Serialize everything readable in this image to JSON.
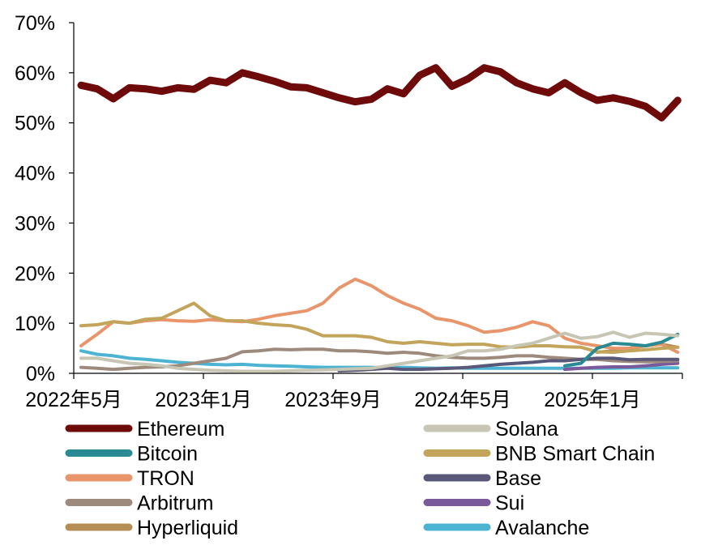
{
  "chart_data": {
    "type": "line",
    "title": "",
    "xlabel": "",
    "ylabel": "",
    "ylim": [
      0,
      70
    ],
    "y_ticks": [
      "0%",
      "10%",
      "20%",
      "30%",
      "40%",
      "50%",
      "60%",
      "70%"
    ],
    "x_tick_labels": [
      "2022年5月",
      "2023年1月",
      "2023年9月",
      "2024年5月",
      "2025年1月"
    ],
    "x_count": 38,
    "grid": false,
    "legend_position": "bottom",
    "series": [
      {
        "name": "Ethereum",
        "color": "#6e0a0a",
        "values": [
          57.5,
          56.8,
          54.8,
          57.0,
          56.8,
          56.3,
          57.0,
          56.7,
          58.5,
          58.0,
          60.0,
          59.2,
          58.3,
          57.2,
          57.0,
          56.0,
          55.0,
          54.2,
          54.7,
          56.8,
          55.8,
          59.5,
          61.0,
          57.3,
          58.8,
          61.0,
          60.2,
          58.0,
          56.8,
          56.0,
          58.0,
          56.0,
          54.5,
          55.0,
          54.3,
          53.3,
          51.0,
          54.5
        ]
      },
      {
        "name": "Solana",
        "color": "#c7c5b3",
        "values": [
          3.0,
          3.0,
          2.5,
          2.0,
          1.8,
          1.5,
          1.0,
          0.8,
          0.6,
          0.5,
          0.4,
          0.4,
          0.4,
          0.5,
          0.6,
          0.7,
          0.8,
          0.9,
          1.0,
          1.5,
          2.0,
          2.5,
          3.0,
          3.5,
          4.5,
          4.5,
          4.8,
          5.5,
          6.0,
          7.0,
          8.0,
          7.0,
          7.3,
          8.2,
          7.2,
          8.0,
          7.8,
          7.5
        ]
      },
      {
        "name": "Bitcoin",
        "color": "#2a8a94",
        "values": [
          null,
          null,
          null,
          null,
          null,
          null,
          null,
          null,
          null,
          null,
          null,
          null,
          null,
          null,
          null,
          null,
          null,
          null,
          null,
          null,
          null,
          null,
          null,
          null,
          null,
          null,
          null,
          null,
          null,
          null,
          1.5,
          2.0,
          5.0,
          6.0,
          5.8,
          5.5,
          6.2,
          7.8
        ]
      },
      {
        "name": "BNB Smart Chain",
        "color": "#c2a45a",
        "values": [
          9.5,
          9.7,
          10.3,
          10.0,
          10.8,
          11.0,
          12.5,
          14.0,
          11.5,
          10.5,
          10.5,
          10.0,
          9.7,
          9.5,
          8.8,
          7.5,
          7.5,
          7.5,
          7.2,
          6.3,
          6.0,
          6.3,
          6.0,
          5.7,
          5.8,
          5.8,
          5.3,
          5.2,
          5.5,
          5.5,
          5.3,
          5.2,
          4.3,
          4.2,
          4.5,
          4.7,
          5.0,
          5.2
        ]
      },
      {
        "name": "TRON",
        "color": "#e8956b",
        "values": [
          5.5,
          7.8,
          10.3,
          10.0,
          10.5,
          10.7,
          10.5,
          10.4,
          10.7,
          10.5,
          10.3,
          10.8,
          11.5,
          12.0,
          12.5,
          14.0,
          17.0,
          18.8,
          17.5,
          15.5,
          14.0,
          12.8,
          11.0,
          10.5,
          9.5,
          8.2,
          8.5,
          9.2,
          10.3,
          9.5,
          7.0,
          6.0,
          5.5,
          5.0,
          5.0,
          5.5,
          5.8,
          4.2
        ]
      },
      {
        "name": "Base",
        "color": "#5a5878",
        "values": [
          null,
          null,
          null,
          null,
          null,
          null,
          null,
          null,
          null,
          null,
          null,
          null,
          null,
          null,
          null,
          null,
          0.5,
          0.6,
          0.8,
          1.0,
          0.8,
          0.8,
          0.9,
          1.0,
          1.2,
          1.5,
          1.8,
          2.0,
          2.2,
          2.5,
          2.5,
          2.8,
          3.0,
          3.0,
          2.7,
          2.8,
          2.8,
          2.8
        ]
      },
      {
        "name": "Arbitrum",
        "color": "#9e8a7d",
        "values": [
          1.2,
          1.0,
          0.8,
          1.0,
          1.2,
          1.3,
          1.5,
          2.0,
          2.5,
          3.0,
          4.3,
          4.5,
          4.8,
          4.7,
          4.8,
          4.8,
          4.5,
          4.5,
          4.3,
          4.0,
          4.2,
          4.0,
          3.5,
          3.2,
          3.0,
          3.0,
          3.2,
          3.5,
          3.5,
          3.2,
          3.0,
          2.8,
          2.8,
          2.5,
          2.4,
          2.3,
          2.4,
          2.5
        ]
      },
      {
        "name": "Sui",
        "color": "#7b5a9b",
        "values": [
          null,
          null,
          null,
          null,
          null,
          null,
          null,
          null,
          null,
          null,
          null,
          null,
          null,
          null,
          null,
          null,
          null,
          null,
          null,
          null,
          null,
          null,
          null,
          null,
          null,
          null,
          null,
          null,
          null,
          null,
          0.8,
          1.0,
          1.2,
          1.3,
          1.3,
          1.5,
          1.8,
          2.0
        ]
      },
      {
        "name": "Hyperliquid",
        "color": "#b68e55",
        "values": [
          null,
          null,
          null,
          null,
          null,
          null,
          null,
          null,
          null,
          null,
          null,
          null,
          null,
          null,
          null,
          null,
          null,
          null,
          null,
          null,
          null,
          null,
          null,
          null,
          null,
          null,
          null,
          null,
          null,
          null,
          null,
          null,
          4.2,
          4.5,
          5.0,
          5.5,
          5.8,
          5.2
        ]
      },
      {
        "name": "Avalanche",
        "color": "#4cb4d2",
        "values": [
          4.5,
          3.8,
          3.5,
          3.0,
          2.8,
          2.5,
          2.2,
          2.0,
          1.8,
          1.7,
          1.8,
          1.6,
          1.5,
          1.4,
          1.3,
          1.2,
          1.2,
          1.2,
          1.2,
          1.1,
          1.2,
          1.1,
          1.0,
          1.1,
          1.0,
          1.0,
          1.0,
          1.0,
          1.0,
          1.0,
          1.0,
          1.0,
          1.0,
          1.0,
          1.1,
          1.1,
          1.1,
          1.1
        ]
      }
    ]
  }
}
